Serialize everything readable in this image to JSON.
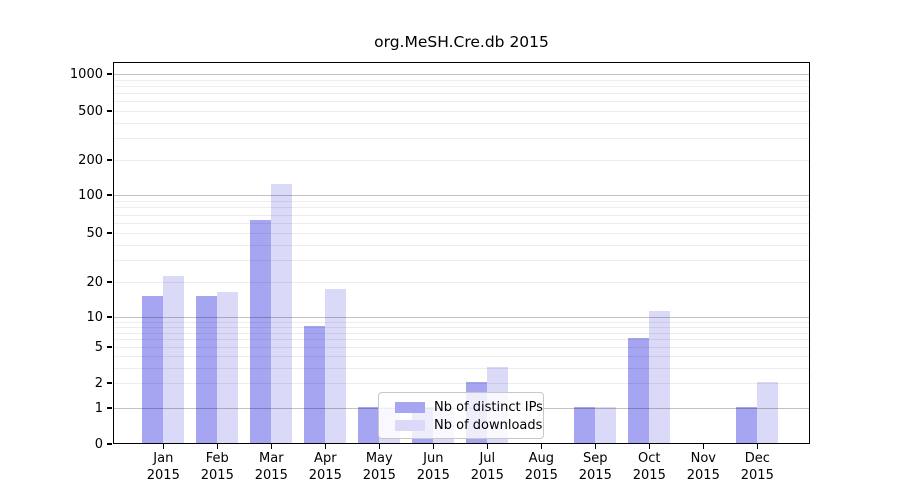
{
  "chart_data": {
    "type": "bar",
    "title": "org.MeSH.Cre.db 2015",
    "categories": [
      "Jan",
      "Feb",
      "Mar",
      "Apr",
      "May",
      "Jun",
      "Jul",
      "Aug",
      "Sep",
      "Oct",
      "Nov",
      "Dec"
    ],
    "category_year": "2015",
    "series": [
      {
        "name": "Nb of distinct IPs",
        "color": "#a5a5f1",
        "values": [
          15,
          15,
          62,
          8,
          1,
          1,
          2,
          0,
          1,
          6,
          0,
          1
        ]
      },
      {
        "name": "Nb of downloads",
        "color": "#dadaf8",
        "values": [
          22,
          16,
          123,
          17,
          1,
          1,
          3,
          0,
          1,
          11,
          0,
          2
        ]
      }
    ],
    "y_axis": {
      "scale": "log1p",
      "tick_values": [
        0,
        1,
        2,
        5,
        10,
        20,
        50,
        100,
        200,
        500,
        1000
      ],
      "major_grid_values": [
        1,
        10,
        100,
        1000
      ],
      "minor_grid_values": [
        2,
        3,
        4,
        5,
        6,
        7,
        8,
        9,
        20,
        30,
        40,
        50,
        60,
        70,
        80,
        90,
        200,
        300,
        400,
        500,
        600,
        700,
        800,
        900
      ]
    },
    "legend": {
      "position": "inside-bottom-center"
    },
    "grid": true
  },
  "colors": {
    "grid_major": "rgba(0,0,0,0.24)",
    "grid_minor": "rgba(0,0,0,0.07)",
    "frame": "#000000",
    "text": "#000000",
    "legend_border": "#c8c8c8"
  }
}
